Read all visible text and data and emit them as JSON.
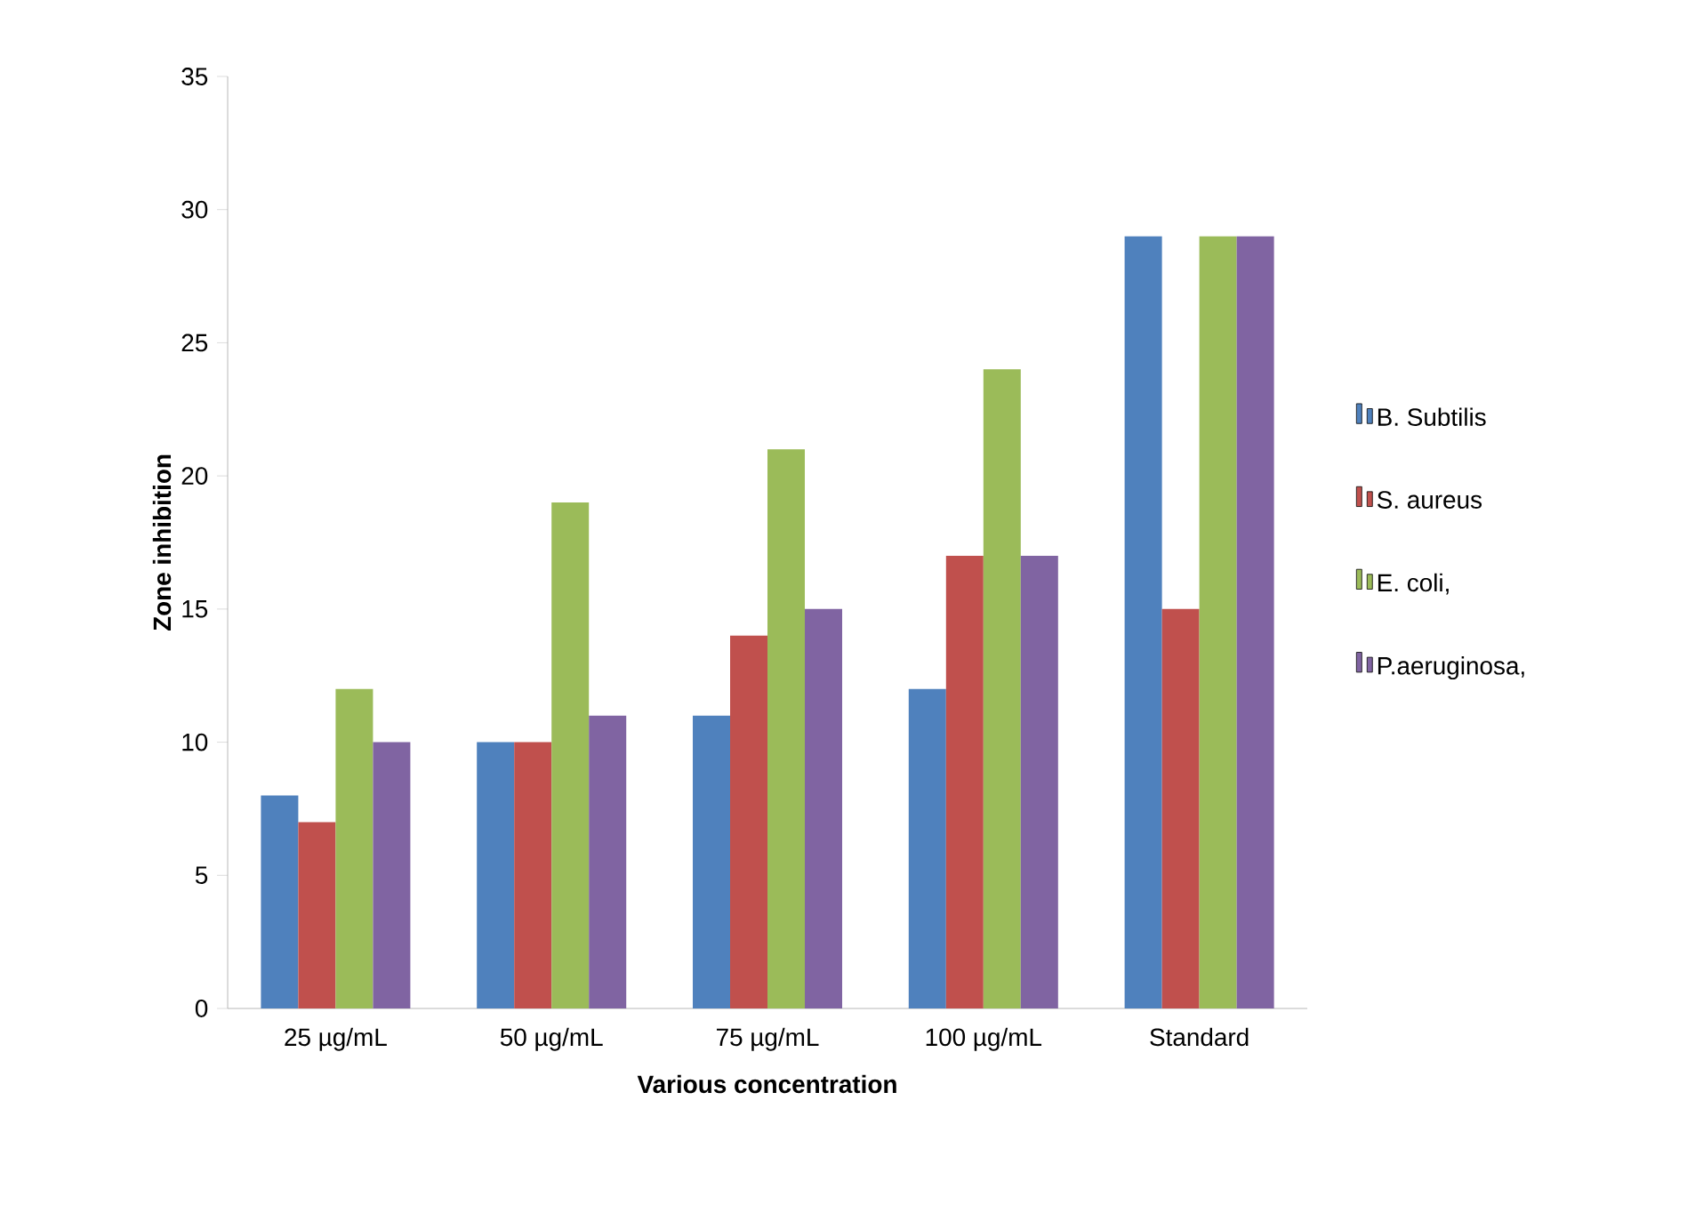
{
  "chart_data": {
    "type": "bar",
    "xlabel": "Various concentration",
    "ylabel": "Zone  inhibition",
    "categories": [
      "25 µg/mL",
      "50 µg/mL",
      "75 µg/mL",
      "100 µg/mL",
      "Standard"
    ],
    "series": [
      {
        "name": "B. Subtilis",
        "color": "#4f81bd",
        "values": [
          8,
          10,
          11,
          12,
          29
        ]
      },
      {
        "name": "S. aureus",
        "color": "#c0504d",
        "values": [
          7,
          10,
          14,
          17,
          15
        ]
      },
      {
        "name": "E. coli,",
        "color": "#9bbb59",
        "values": [
          12,
          19,
          21,
          24,
          29
        ]
      },
      {
        "name": "P.aeruginosa,",
        "color": "#8064a2",
        "values": [
          10,
          11,
          15,
          17,
          29
        ]
      }
    ],
    "ylim": [
      0,
      35
    ],
    "yticks": [
      0,
      5,
      10,
      15,
      20,
      25,
      30,
      35
    ],
    "legend": "right"
  }
}
